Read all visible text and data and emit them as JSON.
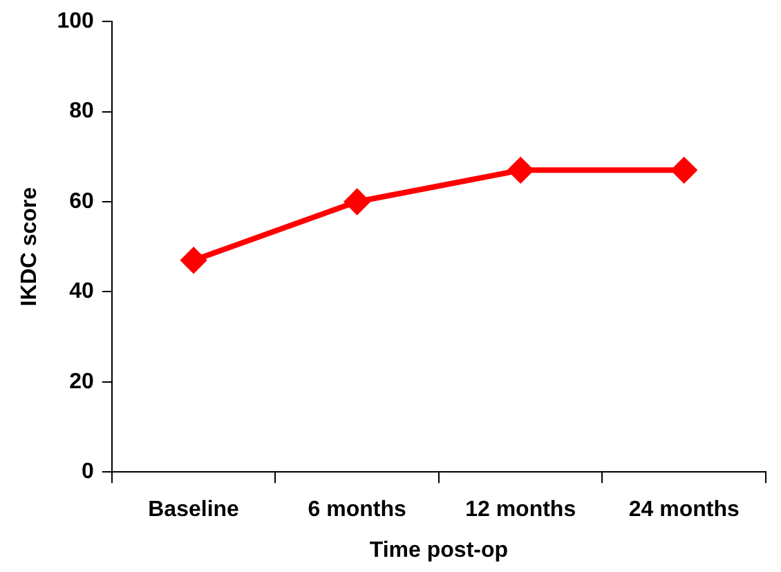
{
  "chart_data": {
    "type": "line",
    "xlabel": "Time post-op",
    "ylabel": "IKDC score",
    "categories": [
      "Baseline",
      "6 months",
      "12 months",
      "24 months"
    ],
    "series": [
      {
        "color": "#ff0000",
        "values": [
          47,
          60,
          67,
          67
        ]
      }
    ],
    "ylim": [
      0,
      100
    ],
    "yticks": [
      0,
      20,
      40,
      60,
      80,
      100
    ],
    "grid": false,
    "legend": false,
    "marker": "diamond",
    "line_style": "solid"
  }
}
